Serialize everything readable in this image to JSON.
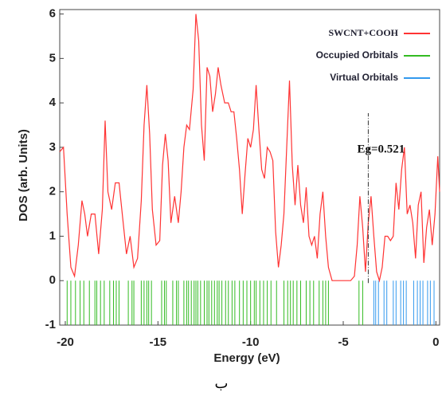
{
  "chart_data": {
    "type": "dos",
    "x_label": "Energy (eV)",
    "y_label": "DOS (arb. Units)",
    "caption": "ب",
    "annotation": "Eg=0.521",
    "xlim": [
      -20.3,
      0.2
    ],
    "ylim": [
      -1,
      6.1
    ],
    "xticks": [
      -20,
      -15,
      -10,
      -5,
      0
    ],
    "yticks": [
      -1,
      0,
      1,
      2,
      3,
      4,
      5,
      6
    ],
    "legend": "top-right",
    "series": [
      {
        "name": "SWCNT+COOH",
        "color": "#ff3333",
        "x": [
          -20.3,
          -20.1,
          -19.9,
          -19.7,
          -19.5,
          -19.3,
          -19.1,
          -18.95,
          -18.8,
          -18.6,
          -18.4,
          -18.2,
          -18.0,
          -17.85,
          -17.7,
          -17.5,
          -17.3,
          -17.1,
          -16.9,
          -16.7,
          -16.5,
          -16.3,
          -16.1,
          -15.9,
          -15.75,
          -15.6,
          -15.45,
          -15.3,
          -15.1,
          -14.9,
          -14.75,
          -14.6,
          -14.45,
          -14.3,
          -14.1,
          -13.9,
          -13.75,
          -13.6,
          -13.45,
          -13.3,
          -13.1,
          -12.95,
          -12.8,
          -12.65,
          -12.5,
          -12.35,
          -12.2,
          -12.05,
          -11.9,
          -11.75,
          -11.6,
          -11.4,
          -11.2,
          -11.05,
          -10.9,
          -10.75,
          -10.6,
          -10.45,
          -10.3,
          -10.15,
          -10.0,
          -9.85,
          -9.7,
          -9.55,
          -9.4,
          -9.25,
          -9.1,
          -8.95,
          -8.8,
          -8.65,
          -8.5,
          -8.35,
          -8.2,
          -8.05,
          -7.9,
          -7.75,
          -7.6,
          -7.45,
          -7.3,
          -7.15,
          -7.0,
          -6.85,
          -6.7,
          -6.55,
          -6.4,
          -6.25,
          -6.1,
          -5.95,
          -5.8,
          -5.6,
          -5.4,
          -5.0,
          -4.6,
          -4.4,
          -4.25,
          -4.1,
          -3.95,
          -3.8,
          -3.65,
          -3.5,
          -3.35,
          -3.2,
          -3.05,
          -2.9,
          -2.75,
          -2.6,
          -2.45,
          -2.3,
          -2.15,
          -2.0,
          -1.85,
          -1.7,
          -1.55,
          -1.4,
          -1.25,
          -1.1,
          -0.95,
          -0.8,
          -0.65,
          -0.5,
          -0.35,
          -0.2,
          -0.05,
          0.1,
          0.2
        ],
        "values": [
          2.9,
          3.0,
          1.5,
          0.3,
          0.1,
          0.8,
          1.8,
          1.5,
          1.0,
          1.5,
          1.5,
          0.6,
          1.6,
          3.6,
          2.0,
          1.6,
          2.2,
          2.2,
          1.4,
          0.6,
          1.0,
          0.3,
          0.5,
          1.8,
          3.5,
          4.4,
          3.3,
          1.6,
          0.8,
          0.9,
          2.6,
          3.3,
          2.7,
          1.3,
          1.9,
          1.3,
          2.0,
          3.0,
          3.5,
          3.4,
          4.3,
          6.0,
          5.4,
          3.5,
          2.7,
          4.8,
          4.6,
          3.8,
          4.2,
          4.8,
          4.4,
          4.0,
          4.0,
          3.8,
          3.8,
          3.2,
          2.5,
          1.5,
          2.4,
          3.2,
          3.0,
          3.4,
          4.4,
          3.4,
          2.5,
          2.3,
          3.0,
          2.9,
          2.7,
          1.1,
          0.3,
          0.8,
          1.5,
          3.0,
          4.5,
          2.6,
          1.7,
          2.6,
          1.7,
          1.3,
          2.1,
          1.0,
          0.8,
          1.0,
          0.5,
          1.5,
          2.0,
          1.0,
          0.3,
          0.0,
          0.0,
          0.0,
          0.0,
          0.1,
          0.8,
          1.9,
          1.2,
          0.2,
          1.3,
          1.9,
          1.0,
          0.2,
          0.0,
          0.3,
          1.0,
          1.0,
          0.9,
          1.0,
          2.2,
          1.6,
          2.5,
          3.0,
          1.5,
          1.7,
          1.3,
          0.5,
          1.7,
          2.0,
          0.4,
          1.2,
          1.6,
          0.8,
          1.5,
          2.8,
          2.0
        ]
      },
      {
        "name": "Occupied Orbitals",
        "color": "#33bb22",
        "x": [
          -19.9,
          -19.7,
          -19.45,
          -19.2,
          -19.0,
          -18.7,
          -18.4,
          -18.3,
          -18.1,
          -17.9,
          -17.6,
          -17.4,
          -17.25,
          -17.1,
          -16.6,
          -16.4,
          -16.3,
          -15.9,
          -15.75,
          -15.6,
          -15.5,
          -15.35,
          -14.8,
          -14.65,
          -14.55,
          -14.2,
          -14.0,
          -13.9,
          -13.6,
          -13.45,
          -13.35,
          -13.2,
          -13.05,
          -12.95,
          -12.85,
          -12.7,
          -12.5,
          -12.35,
          -12.25,
          -12.1,
          -11.95,
          -11.8,
          -11.7,
          -11.55,
          -11.35,
          -11.2,
          -11.0,
          -10.85,
          -10.6,
          -10.4,
          -10.2,
          -10.0,
          -9.8,
          -9.7,
          -9.5,
          -9.3,
          -9.1,
          -8.9,
          -8.6,
          -8.2,
          -8.0,
          -7.85,
          -7.7,
          -7.5,
          -7.3,
          -7.0,
          -6.8,
          -6.6,
          -6.3,
          -6.1,
          -5.95,
          -5.8,
          -4.15,
          -3.95
        ]
      },
      {
        "name": "Virtual Orbitals",
        "color": "#3399ee",
        "x": [
          -3.35,
          -3.25,
          -3.1,
          -2.8,
          -2.65,
          -2.3,
          -2.15,
          -1.9,
          -1.75,
          -1.6,
          -1.2,
          -1.0,
          -0.85,
          -0.7,
          -0.45,
          -0.3,
          -0.1
        ]
      }
    ]
  }
}
